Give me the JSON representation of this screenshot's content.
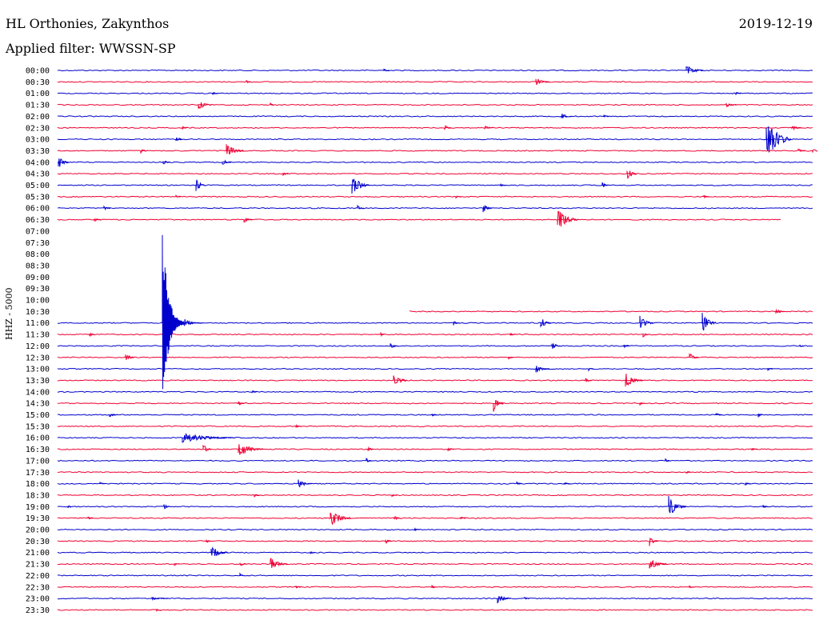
{
  "header": {
    "station": "HL Orthonies, Zakynthos",
    "date": "2019-12-19",
    "filter": "Applied filter: WWSSN-SP"
  },
  "chart_data": {
    "type": "line",
    "ylabel": "HHZ - 5000",
    "colors": {
      "even": "#0000cc",
      "odd": "#ee0033"
    },
    "rows": [
      {
        "label": "00:00",
        "events": [
          [
            480,
            3,
            0.3
          ],
          [
            858,
            10,
            1.0
          ]
        ]
      },
      {
        "label": "00:30",
        "events": [
          [
            308,
            3,
            0.4
          ],
          [
            670,
            8,
            0.7
          ]
        ]
      },
      {
        "label": "01:00",
        "events": [
          [
            266,
            3,
            0.3
          ],
          [
            920,
            3,
            0.3
          ]
        ]
      },
      {
        "label": "01:30",
        "events": [
          [
            248,
            8,
            0.9
          ],
          [
            338,
            3,
            0.3
          ],
          [
            908,
            6,
            0.4
          ]
        ]
      },
      {
        "label": "02:00",
        "events": [
          [
            702,
            6,
            0.6
          ],
          [
            755,
            3,
            0.3
          ]
        ]
      },
      {
        "label": "02:30",
        "events": [
          [
            228,
            3,
            0.3
          ],
          [
            556,
            4,
            0.5
          ],
          [
            606,
            5,
            0.4
          ],
          [
            990,
            6,
            0.5
          ]
        ]
      },
      {
        "label": "03:00",
        "events": [
          [
            220,
            4,
            0.7
          ],
          [
            958,
            14,
            4.0
          ]
        ]
      },
      {
        "label": "03:30",
        "events": [
          [
            176,
            4,
            0.5
          ],
          [
            283,
            10,
            1.5
          ],
          [
            998,
            4,
            0.4
          ],
          [
            1016,
            2,
            0.6
          ]
        ]
      },
      {
        "label": "04:00",
        "events": [
          [
            73,
            6,
            1.3
          ],
          [
            204,
            4,
            0.5
          ],
          [
            278,
            5,
            0.7
          ]
        ]
      },
      {
        "label": "04:30",
        "events": [
          [
            354,
            3,
            0.4
          ],
          [
            784,
            6,
            1.3
          ]
        ]
      },
      {
        "label": "05:00",
        "events": [
          [
            245,
            6,
            1.2
          ],
          [
            440,
            10,
            2.0
          ],
          [
            626,
            3,
            0.3
          ],
          [
            753,
            4,
            0.6
          ]
        ]
      },
      {
        "label": "05:30",
        "events": [
          [
            220,
            3,
            0.3
          ],
          [
            570,
            3,
            0.3
          ],
          [
            880,
            3,
            0.3
          ]
        ]
      },
      {
        "label": "06:00",
        "events": [
          [
            130,
            4,
            0.4
          ],
          [
            447,
            4,
            0.5
          ],
          [
            604,
            5,
            0.8
          ]
        ]
      },
      {
        "label": "06:30",
        "events": [
          [
            118,
            4,
            0.4
          ],
          [
            305,
            5,
            0.6
          ],
          [
            697,
            12,
            2.0
          ]
        ],
        "end": 977
      },
      {
        "label": "07:00",
        "events": [],
        "gap": true
      },
      {
        "label": "07:30",
        "events": [],
        "gap": true
      },
      {
        "label": "08:00",
        "events": [],
        "gap": true
      },
      {
        "label": "08:30",
        "events": [],
        "gap": true
      },
      {
        "label": "09:00",
        "events": [],
        "gap": true
      },
      {
        "label": "09:30",
        "events": [],
        "gap": true
      },
      {
        "label": "10:00",
        "events": [],
        "gap": true
      },
      {
        "label": "10:30",
        "events": [
          [
            970,
            5,
            0.5
          ]
        ],
        "start": 512
      },
      {
        "label": "11:00",
        "events": [
          [
            567,
            4,
            0.5
          ],
          [
            676,
            6,
            1.2
          ],
          [
            800,
            8,
            1.3
          ],
          [
            878,
            8,
            2.0
          ]
        ]
      },
      {
        "label": "11:30",
        "events": [
          [
            112,
            4,
            0.5
          ],
          [
            476,
            3,
            0.4
          ],
          [
            638,
            3,
            0.3
          ],
          [
            804,
            4,
            0.5
          ]
        ]
      },
      {
        "label": "12:00",
        "events": [
          [
            488,
            5,
            0.6
          ],
          [
            690,
            5,
            0.8
          ],
          [
            780,
            4,
            0.4
          ],
          [
            1000,
            3,
            0.3
          ]
        ]
      },
      {
        "label": "12:30",
        "events": [
          [
            157,
            5,
            0.8
          ],
          [
            636,
            3,
            0.3
          ],
          [
            862,
            5,
            0.9
          ]
        ]
      },
      {
        "label": "13:00",
        "events": [
          [
            670,
            8,
            0.7
          ],
          [
            736,
            3,
            0.3
          ],
          [
            960,
            3,
            0.3
          ]
        ]
      },
      {
        "label": "13:30",
        "events": [
          [
            492,
            8,
            1.3
          ],
          [
            732,
            4,
            0.5
          ],
          [
            782,
            10,
            1.4
          ]
        ]
      },
      {
        "label": "14:00",
        "events": [
          [
            315,
            3,
            0.3
          ]
        ]
      },
      {
        "label": "14:30",
        "events": [
          [
            298,
            4,
            0.5
          ],
          [
            617,
            6,
            1.5
          ],
          [
            800,
            3,
            0.3
          ]
        ]
      },
      {
        "label": "15:00",
        "events": [
          [
            137,
            5,
            0.4
          ],
          [
            540,
            3,
            0.3
          ],
          [
            895,
            4,
            0.4
          ],
          [
            948,
            3,
            0.5
          ]
        ]
      },
      {
        "label": "15:30",
        "events": [
          [
            370,
            3,
            0.3
          ]
        ]
      },
      {
        "label": "16:00",
        "events": [
          [
            228,
            30,
            0.9
          ]
        ]
      },
      {
        "label": "16:30",
        "events": [
          [
            254,
            5,
            1.0
          ],
          [
            298,
            14,
            1.4
          ],
          [
            460,
            4,
            0.5
          ],
          [
            560,
            4,
            0.4
          ],
          [
            940,
            3,
            0.3
          ]
        ]
      },
      {
        "label": "17:00",
        "events": [
          [
            458,
            3,
            0.5
          ],
          [
            832,
            3,
            0.4
          ]
        ]
      },
      {
        "label": "17:30",
        "events": [
          [
            858,
            3,
            0.3
          ]
        ]
      },
      {
        "label": "18:00",
        "events": [
          [
            125,
            3,
            0.3
          ],
          [
            373,
            8,
            0.8
          ],
          [
            646,
            3,
            0.3
          ],
          [
            706,
            3,
            0.3
          ],
          [
            932,
            3,
            0.3
          ]
        ]
      },
      {
        "label": "18:30",
        "events": [
          [
            318,
            3,
            0.3
          ],
          [
            490,
            3,
            0.3
          ]
        ]
      },
      {
        "label": "19:00",
        "events": [
          [
            85,
            3,
            0.3
          ],
          [
            205,
            4,
            0.5
          ],
          [
            836,
            10,
            2.0
          ],
          [
            954,
            3,
            0.4
          ]
        ]
      },
      {
        "label": "19:30",
        "events": [
          [
            110,
            3,
            0.3
          ],
          [
            413,
            12,
            1.6
          ],
          [
            493,
            4,
            0.5
          ],
          [
            576,
            3,
            0.3
          ]
        ]
      },
      {
        "label": "20:00",
        "events": [
          [
            518,
            3,
            0.3
          ]
        ]
      },
      {
        "label": "20:30",
        "events": [
          [
            258,
            3,
            0.4
          ],
          [
            482,
            4,
            0.5
          ],
          [
            812,
            5,
            0.9
          ]
        ]
      },
      {
        "label": "21:00",
        "events": [
          [
            264,
            10,
            1.3
          ],
          [
            388,
            3,
            0.3
          ]
        ]
      },
      {
        "label": "21:30",
        "events": [
          [
            218,
            3,
            0.3
          ],
          [
            300,
            4,
            0.5
          ],
          [
            338,
            10,
            1.2
          ],
          [
            812,
            10,
            1.0
          ]
        ]
      },
      {
        "label": "22:00",
        "events": [
          [
            300,
            3,
            0.4
          ]
        ]
      },
      {
        "label": "22:30",
        "events": [
          [
            370,
            3,
            0.3
          ],
          [
            540,
            3,
            0.3
          ],
          [
            862,
            3,
            0.3
          ]
        ]
      },
      {
        "label": "23:00",
        "events": [
          [
            190,
            10,
            0.3
          ],
          [
            622,
            8,
            0.9
          ],
          [
            656,
            3,
            0.3
          ]
        ]
      },
      {
        "label": "23:30",
        "events": [
          [
            195,
            3,
            0.3
          ]
        ]
      }
    ],
    "main_event": {
      "time": "11:00",
      "x_data": 203
    }
  }
}
